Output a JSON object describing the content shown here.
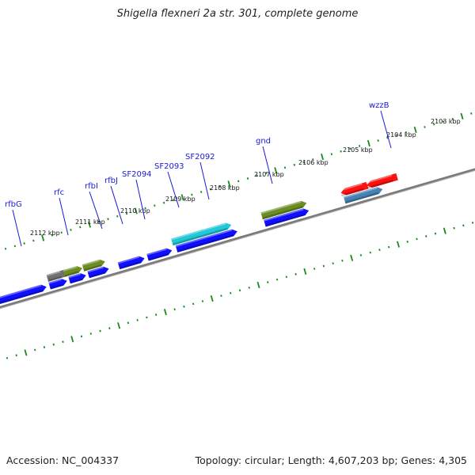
{
  "title": "Shigella flexneri 2a str. 301, complete genome",
  "footer": {
    "accession": "Accession: NC_004337",
    "summary": "Topology: circular; Length: 4,607,203 bp; Genes: 4,305"
  },
  "colors": {
    "backbone": "#808080",
    "tick": "#1a8a1a",
    "label": "#1a1ad6",
    "blue": "#1010ff",
    "olive": "#6b8e23",
    "grey": "#707070",
    "lightgrey": "#c8c8c8",
    "cyan": "#20c8d8",
    "red": "#ff1010",
    "steel": "#4682b4"
  },
  "kbp_ticks": [
    "2112 kbp",
    "2111 kbp",
    "2110 kbp",
    "2109 kbp",
    "2108 kbp",
    "2107 kbp",
    "2106 kbp",
    "2105 kbp",
    "2104 kbp",
    "2103 kbp"
  ],
  "gene_labels": [
    "rfbG",
    "rfc",
    "rfbI",
    "rfbJ",
    "SF2094",
    "SF2093",
    "SF2092",
    "gnd",
    "wzzB"
  ],
  "features": [
    {
      "strand": "outer",
      "color": "lightgrey",
      "dir": "none"
    },
    {
      "strand": "outer",
      "color": "grey",
      "dir": "none"
    },
    {
      "strand": "outer",
      "color": "olive",
      "dir": "right"
    },
    {
      "strand": "outer",
      "color": "olive",
      "dir": "right"
    },
    {
      "strand": "outer",
      "color": "cyan",
      "dir": "right"
    },
    {
      "strand": "outer",
      "color": "olive",
      "dir": "right"
    },
    {
      "strand": "outer",
      "color": "red",
      "dir": "left"
    },
    {
      "strand": "outer",
      "color": "red",
      "dir": "left"
    },
    {
      "strand": "inner",
      "color": "blue",
      "dir": "right"
    },
    {
      "strand": "inner",
      "color": "blue",
      "dir": "right"
    },
    {
      "strand": "inner",
      "color": "blue",
      "dir": "right"
    },
    {
      "strand": "inner",
      "color": "blue",
      "dir": "right"
    },
    {
      "strand": "inner",
      "color": "blue",
      "dir": "right"
    },
    {
      "strand": "inner",
      "color": "blue",
      "dir": "right"
    },
    {
      "strand": "inner",
      "color": "blue",
      "dir": "right"
    },
    {
      "strand": "inner",
      "color": "blue",
      "dir": "right"
    },
    {
      "strand": "inner",
      "color": "blue",
      "dir": "right"
    },
    {
      "strand": "inner",
      "color": "blue",
      "dir": "right"
    },
    {
      "strand": "inner",
      "color": "steel",
      "dir": "right"
    }
  ]
}
